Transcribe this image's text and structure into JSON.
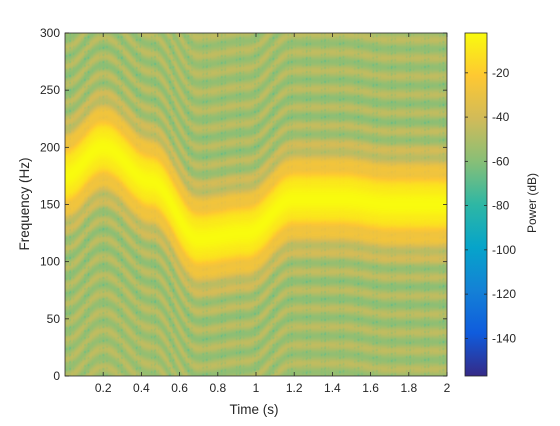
{
  "chart_data": {
    "type": "heatmap",
    "title": "",
    "xlabel": "Time (s)",
    "ylabel": "Frequency (Hz)",
    "xlim": [
      0,
      2
    ],
    "ylim": [
      0,
      300
    ],
    "xticks": [
      "0.2",
      "0.4",
      "0.6",
      "0.8",
      "1",
      "1.2",
      "1.4",
      "1.6",
      "1.8",
      "2"
    ],
    "yticks": [
      "0",
      "50",
      "100",
      "150",
      "200",
      "250",
      "300"
    ],
    "colormap": "parula",
    "colorbar": {
      "label": "Power (dB)",
      "range": [
        -157,
        -2
      ],
      "ticks": [
        "-20",
        "-40",
        "-60",
        "-80",
        "-100",
        "-120",
        "-140"
      ]
    },
    "signal": {
      "description_type": "sinusoidal FM chirp",
      "ridge_time": [
        0,
        0.2,
        0.45,
        0.7,
        0.95,
        1.2,
        1.45,
        1.7,
        1.95,
        2.0
      ],
      "ridge_frequency_hz": [
        175,
        200,
        170,
        120,
        125,
        155,
        155,
        150,
        150,
        150
      ],
      "peak_power_db": -2,
      "background_power_db": -45
    },
    "grid": false,
    "legend": "none"
  }
}
